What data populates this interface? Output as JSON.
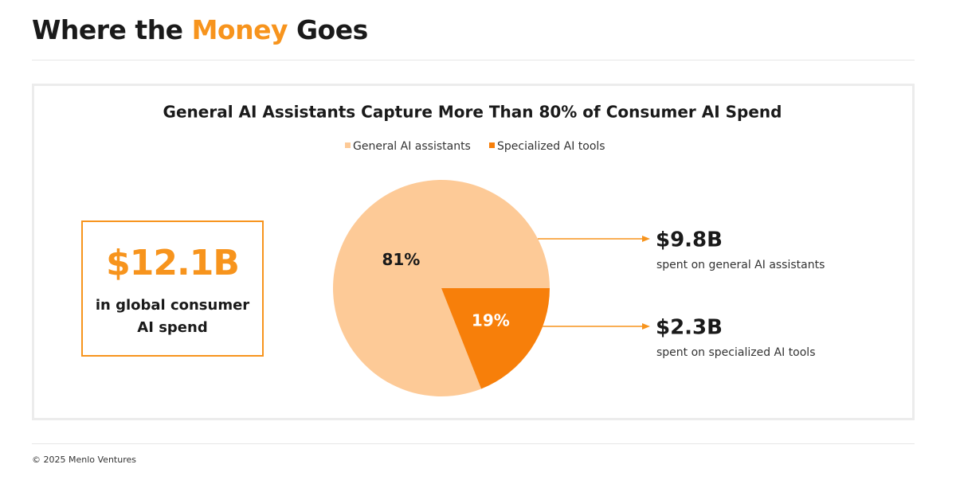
{
  "header": {
    "title_parts": [
      "Where the ",
      "Money",
      " Goes"
    ]
  },
  "summary": {
    "value": "$12.1B",
    "text": "in global consumer AI spend"
  },
  "chart_data": {
    "type": "pie",
    "title": "General AI Assistants Capture More Than 80% of Consumer AI Spend",
    "categories": [
      "General AI assistants",
      "Specialized AI tools"
    ],
    "values": [
      81,
      19
    ],
    "value_labels": [
      "81%",
      "19%"
    ],
    "colors": [
      "#fdca97",
      "#f77f0a"
    ],
    "callouts": [
      {
        "value": "$9.8B",
        "text": "spent on general AI assistants"
      },
      {
        "value": "$2.3B",
        "text": "spent on specialized AI tools"
      }
    ]
  },
  "footer": {
    "text": "© 2025 Menlo Ventures"
  }
}
